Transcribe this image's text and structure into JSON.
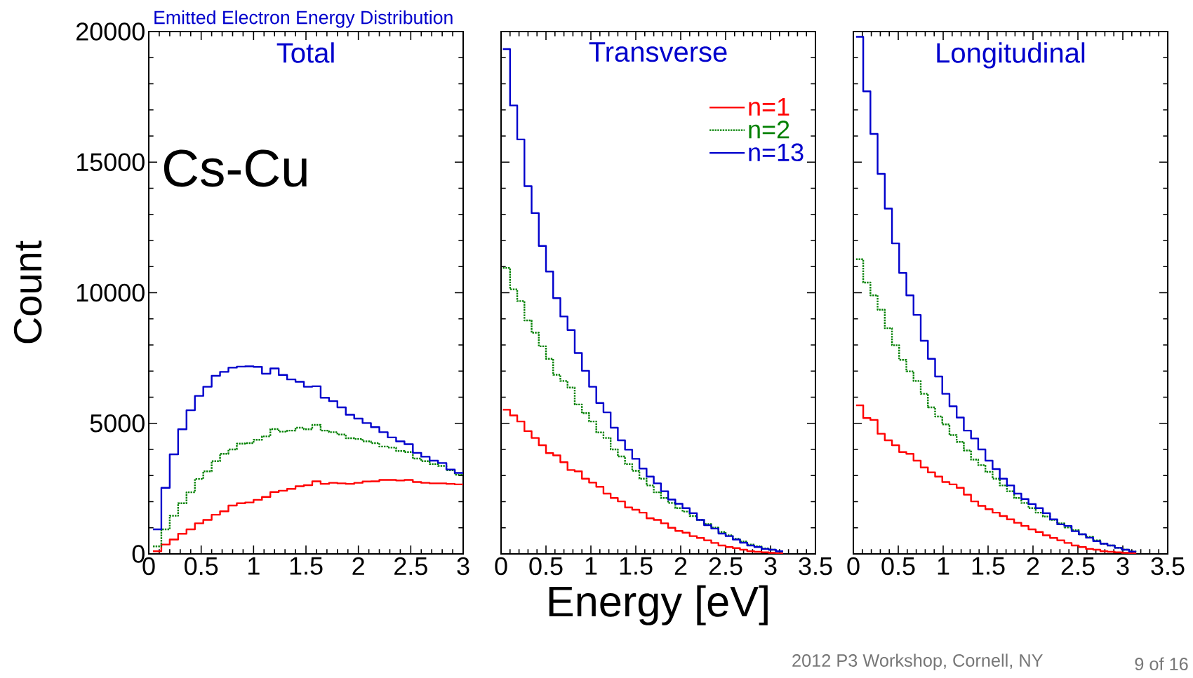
{
  "chart_data": [
    {
      "type": "histogram",
      "title": "Total",
      "ylabel": "Count",
      "annotations": [
        "Cs-Cu",
        "Emitted Electron Energy Distribution"
      ],
      "bins": [
        0.04,
        0.12,
        0.2,
        0.28,
        0.36,
        0.44,
        0.52,
        0.6,
        0.68,
        0.76,
        0.84,
        0.92,
        1.0,
        1.08,
        1.16,
        1.24,
        1.32,
        1.4,
        1.48,
        1.56,
        1.64,
        1.72,
        1.8,
        1.88,
        1.96,
        2.04,
        2.12,
        2.2,
        2.28,
        2.36,
        2.44,
        2.52,
        2.6,
        2.68,
        2.76,
        2.84,
        2.92,
        3.0
      ],
      "series": [
        {
          "color": "#ff0000",
          "line_style": "solid",
          "values": [
            100,
            360,
            550,
            770,
            940,
            1170,
            1300,
            1500,
            1630,
            1850,
            1940,
            1970,
            2070,
            2180,
            2370,
            2420,
            2490,
            2590,
            2630,
            2780,
            2680,
            2720,
            2700,
            2680,
            2720,
            2770,
            2780,
            2830,
            2830,
            2810,
            2830,
            2750,
            2720,
            2700,
            2700,
            2680,
            2660
          ]
        },
        {
          "color": "#008000",
          "line_style": "dotted",
          "values": [
            290,
            940,
            1460,
            1940,
            2360,
            2870,
            3160,
            3550,
            3830,
            4000,
            4220,
            4240,
            4370,
            4500,
            4780,
            4680,
            4720,
            4830,
            4770,
            4940,
            4720,
            4660,
            4570,
            4430,
            4400,
            4310,
            4240,
            4110,
            4070,
            3940,
            3900,
            3650,
            3550,
            3440,
            3370,
            3200,
            3030
          ]
        },
        {
          "color": "#0000cc",
          "line_style": "solid",
          "values": [
            940,
            2530,
            3810,
            4770,
            5500,
            6050,
            6400,
            6820,
            6970,
            7130,
            7170,
            7180,
            7160,
            6900,
            7100,
            6850,
            6680,
            6590,
            6400,
            6420,
            5980,
            5850,
            5610,
            5330,
            5180,
            5010,
            4850,
            4660,
            4460,
            4310,
            4200,
            3870,
            3720,
            3570,
            3480,
            3230,
            3100
          ]
        }
      ],
      "xlim": [
        0,
        3
      ],
      "ylim": [
        0,
        20000
      ],
      "xticks": [
        0,
        0.5,
        1,
        1.5,
        2,
        2.5,
        3
      ],
      "yticks": [
        0,
        5000,
        10000,
        15000,
        20000
      ]
    },
    {
      "type": "histogram",
      "title": "Transverse",
      "xlabel": "Energy [eV]",
      "legend": "top right",
      "tick_labels": "x",
      "bins": [
        0.02,
        0.1,
        0.18,
        0.26,
        0.34,
        0.42,
        0.5,
        0.58,
        0.66,
        0.74,
        0.82,
        0.9,
        0.98,
        1.06,
        1.14,
        1.22,
        1.3,
        1.38,
        1.46,
        1.54,
        1.62,
        1.7,
        1.78,
        1.86,
        1.94,
        2.02,
        2.1,
        2.18,
        2.26,
        2.34,
        2.42,
        2.5,
        2.58,
        2.66,
        2.74,
        2.82,
        2.9,
        2.98,
        3.06,
        3.14
      ],
      "series": [
        {
          "name": "n=1",
          "color": "#ff0000",
          "line_style": "solid",
          "values": [
            5520,
            5300,
            5070,
            4700,
            4440,
            4160,
            3860,
            3770,
            3510,
            3210,
            3160,
            2880,
            2730,
            2570,
            2310,
            2140,
            2010,
            1780,
            1690,
            1580,
            1360,
            1300,
            1170,
            1000,
            880,
            810,
            680,
            610,
            520,
            420,
            320,
            260,
            220,
            160,
            100,
            80,
            60,
            40,
            30
          ]
        },
        {
          "name": "n=2",
          "color": "#008000",
          "line_style": "dotted",
          "values": [
            10950,
            10130,
            9680,
            8940,
            8470,
            7950,
            7470,
            6860,
            6620,
            6370,
            5720,
            5390,
            5070,
            4650,
            4440,
            4000,
            3730,
            3440,
            3180,
            2880,
            2620,
            2360,
            2140,
            1950,
            1750,
            1620,
            1450,
            1300,
            1140,
            1010,
            840,
            710,
            580,
            480,
            360,
            290,
            210,
            160,
            100
          ]
        },
        {
          "name": "n=13",
          "color": "#0000cc",
          "line_style": "solid",
          "values": [
            19330,
            17170,
            15870,
            14080,
            13050,
            11790,
            10810,
            9790,
            9090,
            8570,
            7690,
            7010,
            6400,
            5780,
            5420,
            4830,
            4350,
            3990,
            3640,
            3270,
            2960,
            2700,
            2400,
            2080,
            1920,
            1750,
            1560,
            1300,
            1100,
            970,
            780,
            680,
            550,
            430,
            320,
            260,
            190,
            160,
            100
          ]
        }
      ],
      "xlim": [
        0,
        3.5
      ],
      "ylim": [
        0,
        20000
      ],
      "xticks": [
        0,
        0.5,
        1,
        1.5,
        2,
        2.5,
        3,
        3.5
      ],
      "yticks": [
        0,
        5000,
        10000,
        15000,
        20000
      ]
    },
    {
      "type": "histogram",
      "title": "Longitudinal",
      "tick_labels": "x",
      "annotations": [
        "2012 P3 Workshop, Cornell, NY",
        "9 of 16"
      ],
      "bins": [
        0.03,
        0.11,
        0.19,
        0.27,
        0.35,
        0.43,
        0.51,
        0.59,
        0.67,
        0.75,
        0.83,
        0.91,
        0.99,
        1.07,
        1.15,
        1.23,
        1.31,
        1.39,
        1.47,
        1.55,
        1.63,
        1.71,
        1.79,
        1.87,
        1.95,
        2.03,
        2.11,
        2.19,
        2.27,
        2.35,
        2.43,
        2.51,
        2.59,
        2.67,
        2.75,
        2.83,
        2.91,
        2.99,
        3.07,
        3.15
      ],
      "series": [
        {
          "color": "#ff0000",
          "line_style": "solid",
          "values": [
            5690,
            5200,
            5130,
            4600,
            4350,
            4160,
            3900,
            3830,
            3570,
            3310,
            3120,
            2960,
            2750,
            2660,
            2530,
            2270,
            2010,
            1840,
            1710,
            1580,
            1450,
            1320,
            1190,
            1070,
            940,
            840,
            710,
            610,
            520,
            420,
            320,
            260,
            190,
            160,
            100,
            80,
            60,
            40,
            30
          ]
        },
        {
          "color": "#008000",
          "line_style": "dotted",
          "values": [
            11280,
            10390,
            9900,
            9350,
            8640,
            7990,
            7430,
            6990,
            6620,
            6130,
            5610,
            5260,
            4960,
            4550,
            4290,
            3960,
            3610,
            3400,
            3140,
            2880,
            2620,
            2400,
            2140,
            1950,
            1750,
            1580,
            1430,
            1300,
            1170,
            1010,
            910,
            750,
            650,
            520,
            390,
            320,
            230,
            160,
            90
          ]
        },
        {
          "color": "#0000cc",
          "line_style": "solid",
          "values": [
            19800,
            17710,
            16080,
            14550,
            13220,
            11890,
            10760,
            9900,
            9150,
            8160,
            7470,
            6790,
            6130,
            5650,
            5220,
            4720,
            4420,
            4000,
            3570,
            3250,
            2880,
            2620,
            2310,
            2100,
            1910,
            1750,
            1560,
            1320,
            1130,
            1070,
            870,
            750,
            620,
            490,
            390,
            320,
            230,
            160,
            90
          ]
        }
      ],
      "xlim": [
        0,
        3.5
      ],
      "ylim": [
        0,
        20000
      ],
      "xticks": [
        0,
        0.5,
        1,
        1.5,
        2,
        2.5,
        3,
        3.5
      ],
      "yticks": [
        0,
        5000,
        10000,
        15000,
        20000
      ]
    }
  ]
}
